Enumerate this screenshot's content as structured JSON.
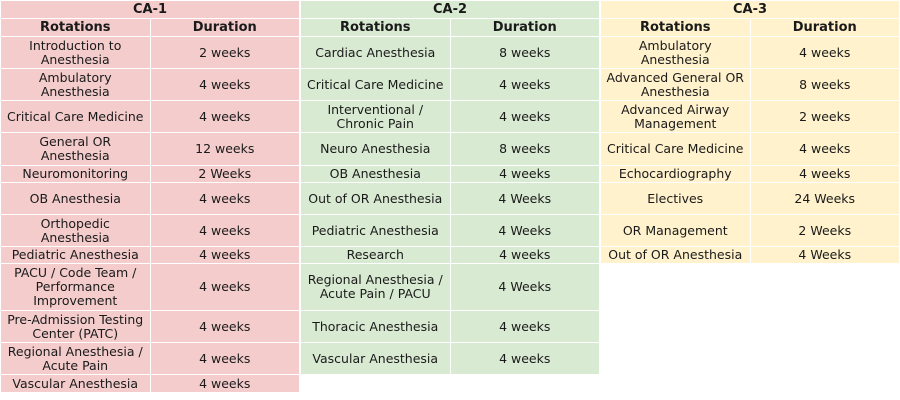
{
  "tables": [
    {
      "title": "CA-1",
      "headers": [
        "Rotations",
        "Duration"
      ],
      "rows": [
        [
          "Introduction to Anesthesia",
          "2 weeks"
        ],
        [
          "Ambulatory Anesthesia",
          "4 weeks"
        ],
        [
          "Critical Care Medicine",
          "4 weeks"
        ],
        [
          "General OR Anesthesia",
          "12 weeks"
        ],
        [
          "Neuromonitoring",
          "2 Weeks"
        ],
        [
          "OB Anesthesia",
          "4 weeks"
        ],
        [
          "Orthopedic Anesthesia",
          "4 weeks"
        ],
        [
          "Pediatric Anesthesia",
          "4 weeks"
        ],
        [
          "PACU / Code Team / Performance Improvement",
          "4 weeks"
        ],
        [
          "Pre-Admission Testing Center (PATC)",
          "4 weeks"
        ],
        [
          "Regional Anesthesia / Acute Pain",
          "4 weeks"
        ],
        [
          "Vascular Anesthesia",
          "4 weeks"
        ]
      ]
    },
    {
      "title": "CA-2",
      "headers": [
        "Rotations",
        "Duration"
      ],
      "rows": [
        [
          "Cardiac Anesthesia",
          "8 weeks"
        ],
        [
          "Critical Care Medicine",
          "4 weeks"
        ],
        [
          "Interventional / Chronic Pain",
          "4 weeks"
        ],
        [
          "Neuro Anesthesia",
          "8 weeks"
        ],
        [
          "OB Anesthesia",
          "4 weeks"
        ],
        [
          "Out of OR Anesthesia",
          "4 Weeks"
        ],
        [
          "Pediatric Anesthesia",
          "4 Weeks"
        ],
        [
          "Research",
          "4 weeks"
        ],
        [
          "Regional Anesthesia / Acute Pain / PACU",
          "4 Weeks"
        ],
        [
          "Thoracic Anesthesia",
          "4 weeks"
        ],
        [
          "Vascular Anesthesia",
          "4 weeks"
        ]
      ]
    },
    {
      "title": "CA-3",
      "headers": [
        "Rotations",
        "Duration"
      ],
      "rows": [
        [
          "Ambulatory Anesthesia",
          "4 weeks"
        ],
        [
          "Advanced General OR Anesthesia",
          "8 weeks"
        ],
        [
          "Advanced Airway Management",
          "2 weeks"
        ],
        [
          "Critical Care Medicine",
          "4 weeks"
        ],
        [
          "Echocardiography",
          "4 weeks"
        ],
        [
          "Electives",
          "24 Weeks"
        ],
        [
          "OR Management",
          "2 Weeks"
        ],
        [
          "Out of OR Anesthesia",
          "4 Weeks"
        ]
      ]
    }
  ],
  "colors": {
    "ca1_bg": "#f4cccc",
    "ca2_bg": "#d9ead3",
    "ca3_bg": "#fff2cc"
  }
}
